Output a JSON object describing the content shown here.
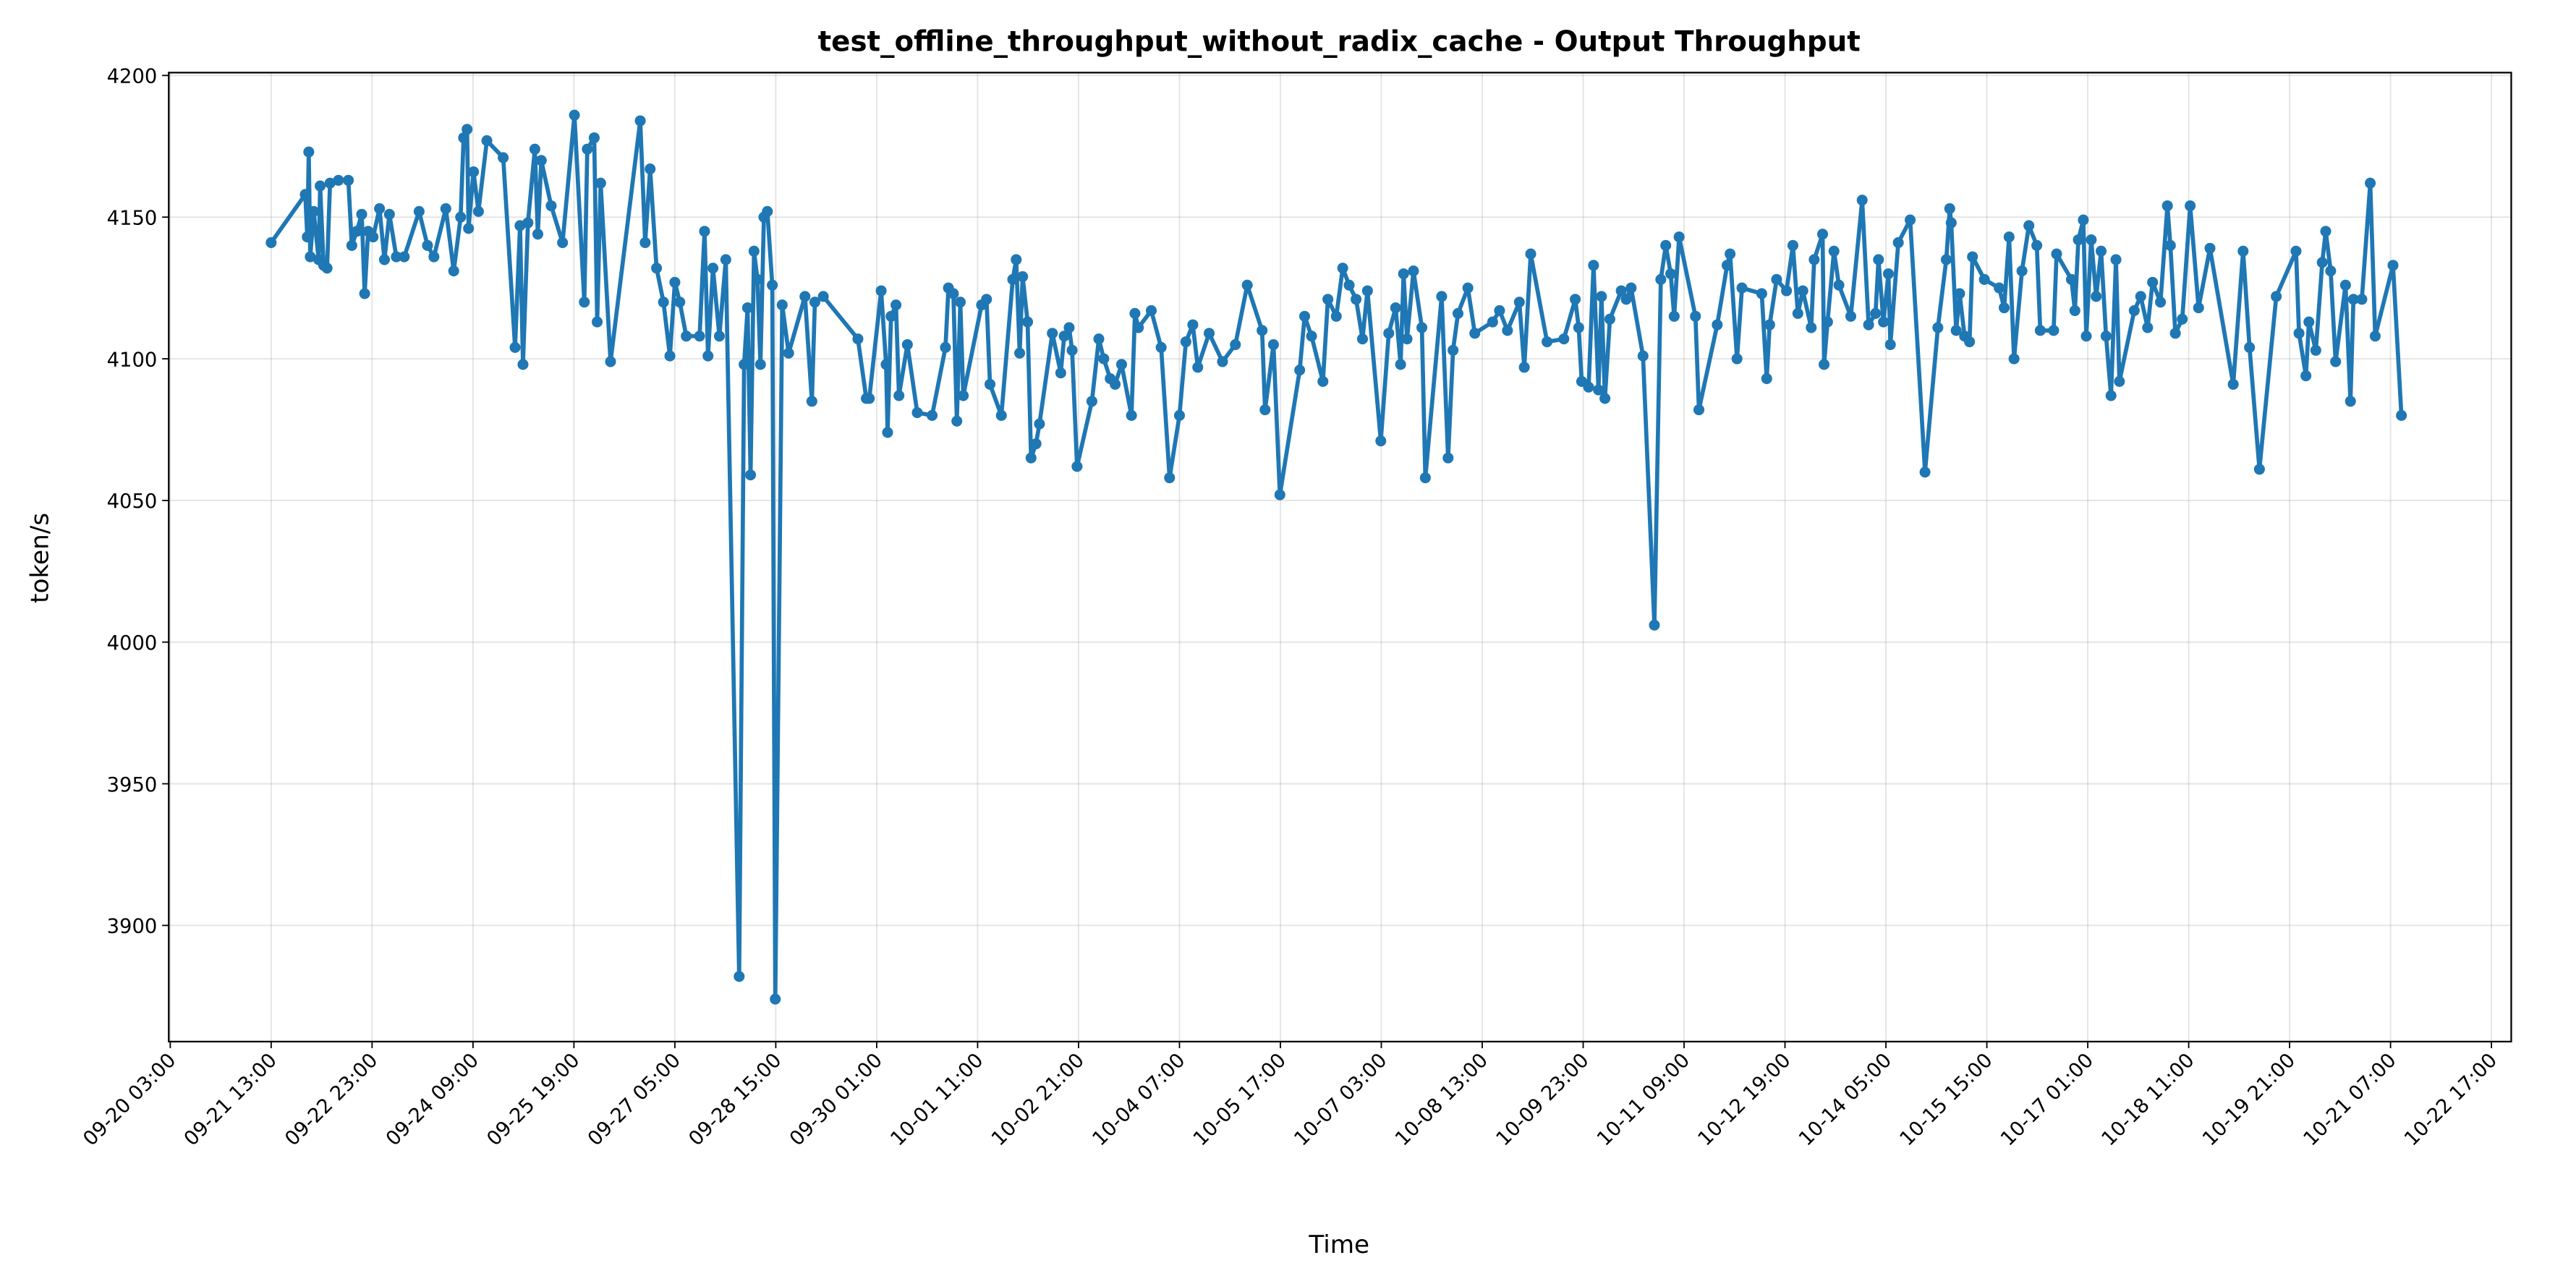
{
  "chart_data": {
    "type": "line",
    "title": "test_offline_throughput_without_radix_cache - Output Throughput",
    "xlabel": "Time",
    "ylabel": "token/s",
    "color": "#1f77b4",
    "grid": true,
    "xlim": [
      "09-20 02:30",
      "10-22 23:40"
    ],
    "xticks": [
      "09-20 03:00",
      "09-21 13:00",
      "09-22 23:00",
      "09-24 09:00",
      "09-25 19:00",
      "09-27 05:00",
      "09-28 15:00",
      "09-30 01:00",
      "10-01 11:00",
      "10-02 21:00",
      "10-04 07:00",
      "10-05 17:00",
      "10-07 03:00",
      "10-08 13:00",
      "10-09 23:00",
      "10-11 09:00",
      "10-12 19:00",
      "10-14 05:00",
      "10-15 15:00",
      "10-17 01:00",
      "10-18 11:00",
      "10-19 21:00",
      "10-21 07:00",
      "10-22 17:00"
    ],
    "ylim": [
      3859,
      4201
    ],
    "yticks": [
      3900,
      3950,
      4000,
      4050,
      4100,
      4150,
      4200
    ],
    "x": [
      "09-21 13:00",
      "09-22 00:30",
      "09-22 01:10",
      "09-22 01:40",
      "09-22 02:10",
      "09-22 03:20",
      "09-22 05:00",
      "09-22 05:30",
      "09-22 06:40",
      "09-22 07:50",
      "09-22 08:50",
      "09-22 11:40",
      "09-22 15:00",
      "09-22 16:10",
      "09-22 17:50",
      "09-22 19:30",
      "09-22 20:30",
      "09-22 21:40",
      "09-22 23:20",
      "09-23 01:30",
      "09-23 03:10",
      "09-23 04:50",
      "09-23 07:10",
      "09-23 09:50",
      "09-23 14:50",
      "09-23 17:40",
      "09-23 19:50",
      "09-23 23:50",
      "09-24 02:30",
      "09-24 04:50",
      "09-24 05:50",
      "09-24 07:00",
      "09-24 07:30",
      "09-24 09:10",
      "09-24 10:50",
      "09-24 13:40",
      "09-24 19:10",
      "09-24 23:10",
      "09-25 00:50",
      "09-25 01:50",
      "09-25 03:30",
      "09-25 05:50",
      "09-25 06:50",
      "09-25 08:00",
      "09-25 11:20",
      "09-25 15:10",
      "09-25 19:10",
      "09-25 22:30",
      "09-25 23:30",
      "09-26 01:50",
      "09-26 02:50",
      "09-26 04:00",
      "09-26 07:20",
      "09-26 17:20",
      "09-26 19:00",
      "09-26 20:40",
      "09-26 22:50",
      "09-27 01:10",
      "09-27 03:20",
      "09-27 05:00",
      "09-27 06:40",
      "09-27 08:50",
      "09-27 13:20",
      "09-27 15:00",
      "09-27 16:10",
      "09-27 17:50",
      "09-27 20:00",
      "09-27 22:10",
      "09-28 02:40",
      "09-28 04:20",
      "09-28 05:30",
      "09-28 06:30",
      "09-28 07:40",
      "09-28 08:50",
      "09-28 09:50",
      "09-28 11:00",
      "09-28 12:10",
      "09-28 13:50",
      "09-28 14:50",
      "09-28 17:10",
      "09-28 19:20",
      "09-29 00:50",
      "09-29 03:10",
      "09-29 04:10",
      "09-29 07:00",
      "09-29 18:40",
      "09-29 21:30",
      "09-29 22:30",
      "09-30 02:30",
      "09-30 04:10",
      "09-30 04:40",
      "09-30 05:50",
      "09-30 07:30",
      "09-30 08:30",
      "09-30 11:20",
      "09-30 14:40",
      "09-30 19:40",
      "10-01 00:10",
      "10-01 01:10",
      "10-01 02:50",
      "10-01 04:00",
      "10-01 05:10",
      "10-01 06:10",
      "10-01 12:20",
      "10-01 14:00",
      "10-01 15:10",
      "10-01 19:00",
      "10-01 22:50",
      "10-02 00:00",
      "10-02 01:10",
      "10-02 02:10",
      "10-02 03:50",
      "10-02 05:00",
      "10-02 06:40",
      "10-02 07:50",
      "10-02 12:10",
      "10-02 15:00",
      "10-02 16:10",
      "10-02 17:50",
      "10-02 18:50",
      "10-02 20:30",
      "10-03 01:30",
      "10-03 03:50",
      "10-03 05:30",
      "10-03 07:40",
      "10-03 09:20",
      "10-03 11:30",
      "10-03 14:50",
      "10-03 16:00",
      "10-03 17:10",
      "10-03 21:30",
      "10-04 00:50",
      "10-04 03:40",
      "10-04 07:00",
      "10-04 09:10",
      "10-04 11:30",
      "10-04 13:10",
      "10-04 17:00",
      "10-04 21:30",
      "10-05 01:50",
      "10-05 05:50",
      "10-05 10:50",
      "10-05 11:50",
      "10-05 14:40",
      "10-05 16:50",
      "10-05 23:30",
      "10-06 01:10",
      "10-06 03:30",
      "10-06 07:20",
      "10-06 09:00",
      "10-06 11:50",
      "10-06 14:00",
      "10-06 16:10",
      "10-06 18:30",
      "10-06 20:40",
      "10-06 22:20",
      "10-07 02:50",
      "10-07 05:30",
      "10-07 07:50",
      "10-07 09:30",
      "10-07 10:30",
      "10-07 11:40",
      "10-07 13:50",
      "10-07 16:40",
      "10-07 17:50",
      "10-07 23:20",
      "10-08 01:30",
      "10-08 03:10",
      "10-08 04:50",
      "10-08 08:10",
      "10-08 10:30",
      "10-08 16:30",
      "10-08 18:50",
      "10-08 21:30",
      "10-09 01:30",
      "10-09 03:10",
      "10-09 05:20",
      "10-09 10:50",
      "10-09 16:30",
      "10-09 20:20",
      "10-09 21:30",
      "10-09 22:30",
      "10-10 00:50",
      "10-10 02:30",
      "10-10 04:10",
      "10-10 05:10",
      "10-10 06:20",
      "10-10 08:00",
      "10-10 11:50",
      "10-10 13:30",
      "10-10 15:10",
      "10-10 19:10",
      "10-10 23:00",
      "10-11 01:10",
      "10-11 02:50",
      "10-11 04:30",
      "10-11 05:40",
      "10-11 07:20",
      "10-11 12:50",
      "10-11 14:00",
      "10-11 20:10",
      "10-11 23:30",
      "10-12 00:30",
      "10-12 02:50",
      "10-12 04:30",
      "10-12 11:10",
      "10-12 12:50",
      "10-12 13:50",
      "10-12 16:10",
      "10-12 19:30",
      "10-12 21:40",
      "10-12 23:20",
      "10-13 01:00",
      "10-13 03:50",
      "10-13 04:50",
      "10-13 07:40",
      "10-13 08:10",
      "10-13 09:20",
      "10-13 11:30",
      "10-13 13:10",
      "10-13 17:10",
      "10-13 21:00",
      "10-13 23:10",
      "10-14 01:30",
      "10-14 02:30",
      "10-14 04:10",
      "10-14 05:50",
      "10-14 06:30",
      "10-14 09:10",
      "10-14 13:10",
      "10-14 18:10",
      "10-14 22:30",
      "10-15 01:20",
      "10-15 02:30",
      "10-15 03:00",
      "10-15 04:40",
      "10-15 05:50",
      "10-15 07:30",
      "10-15 09:10",
      "10-15 10:10",
      "10-15 14:10",
      "10-15 19:10",
      "10-15 20:50",
      "10-15 22:30",
      "10-16 00:10",
      "10-16 02:50",
      "10-16 05:10",
      "10-16 07:50",
      "10-16 09:00",
      "10-16 13:30",
      "10-16 14:30",
      "10-16 19:30",
      "10-16 20:40",
      "10-16 21:50",
      "10-16 23:30",
      "10-17 00:30",
      "10-17 02:10",
      "10-17 03:50",
      "10-17 05:30",
      "10-17 07:10",
      "10-17 08:50",
      "10-17 10:30",
      "10-17 11:40",
      "10-17 16:40",
      "10-17 18:50",
      "10-17 21:10",
      "10-17 22:50",
      "10-18 01:30",
      "10-18 03:50",
      "10-18 04:50",
      "10-18 06:30",
      "10-18 08:50",
      "10-18 11:30",
      "10-18 14:20",
      "10-18 18:10",
      "10-19 02:00",
      "10-19 05:20",
      "10-19 07:30",
      "10-19 10:50",
      "10-19 16:30",
      "10-19 23:10",
      "10-20 00:10",
      "10-20 02:30",
      "10-20 03:30",
      "10-20 05:50",
      "10-20 08:00",
      "10-20 09:10",
      "10-20 10:50",
      "10-20 12:30",
      "10-20 15:50",
      "10-20 17:30",
      "10-20 18:30",
      "10-20 21:20",
      "10-21 00:10",
      "10-21 01:50",
      "10-21 07:50",
      "10-21 10:40"
    ],
    "values": [
      4141,
      4158,
      4143,
      4173,
      4136,
      4152,
      4135,
      4161,
      4133,
      4132,
      4162,
      4163,
      4163,
      4140,
      4145,
      4151,
      4123,
      4145,
      4143,
      4153,
      4135,
      4151,
      4136,
      4136,
      4152,
      4140,
      4136,
      4153,
      4131,
      4150,
      4178,
      4181,
      4146,
      4166,
      4152,
      4177,
      4171,
      4104,
      4147,
      4098,
      4148,
      4174,
      4144,
      4170,
      4154,
      4141,
      4186,
      4120,
      4174,
      4178,
      4113,
      4162,
      4099,
      4184,
      4141,
      4167,
      4132,
      4120,
      4101,
      4127,
      4120,
      4108,
      4108,
      4145,
      4101,
      4132,
      4108,
      4135,
      3882,
      4098,
      4118,
      4059,
      4138,
      4128,
      4098,
      4150,
      4152,
      4126,
      3874,
      4119,
      4102,
      4122,
      4085,
      4120,
      4122,
      4107,
      4086,
      4086,
      4124,
      4098,
      4074,
      4115,
      4119,
      4087,
      4105,
      4081,
      4080,
      4104,
      4125,
      4123,
      4078,
      4120,
      4087,
      4119,
      4121,
      4091,
      4080,
      4128,
      4135,
      4102,
      4129,
      4113,
      4065,
      4070,
      4077,
      4109,
      4095,
      4108,
      4111,
      4103,
      4062,
      4085,
      4107,
      4100,
      4093,
      4091,
      4098,
      4080,
      4116,
      4111,
      4117,
      4104,
      4058,
      4080,
      4106,
      4112,
      4097,
      4109,
      4099,
      4105,
      4126,
      4110,
      4082,
      4105,
      4052,
      4096,
      4115,
      4108,
      4092,
      4121,
      4115,
      4132,
      4126,
      4121,
      4107,
      4124,
      4071,
      4109,
      4118,
      4098,
      4130,
      4107,
      4131,
      4111,
      4058,
      4122,
      4065,
      4103,
      4116,
      4125,
      4109,
      4113,
      4117,
      4110,
      4120,
      4097,
      4137,
      4106,
      4107,
      4121,
      4111,
      4092,
      4090,
      4133,
      4089,
      4122,
      4086,
      4114,
      4124,
      4121,
      4125,
      4101,
      4006,
      4128,
      4140,
      4130,
      4115,
      4143,
      4115,
      4082,
      4112,
      4133,
      4137,
      4100,
      4125,
      4123,
      4093,
      4112,
      4128,
      4124,
      4140,
      4116,
      4124,
      4111,
      4135,
      4144,
      4098,
      4113,
      4138,
      4126,
      4115,
      4156,
      4112,
      4116,
      4135,
      4113,
      4130,
      4105,
      4141,
      4149,
      4060,
      4111,
      4135,
      4153,
      4148,
      4110,
      4123,
      4108,
      4106,
      4136,
      4128,
      4125,
      4118,
      4143,
      4100,
      4131,
      4147,
      4140,
      4110,
      4110,
      4137,
      4128,
      4117,
      4142,
      4149,
      4108,
      4142,
      4122,
      4138,
      4108,
      4087,
      4135,
      4092,
      4117,
      4122,
      4111,
      4127,
      4120,
      4154,
      4140,
      4109,
      4114,
      4154,
      4118,
      4139,
      4091,
      4138,
      4104,
      4061,
      4122,
      4138,
      4109,
      4094,
      4113,
      4103,
      4134,
      4145,
      4131,
      4099,
      4126,
      4085,
      4121,
      4121,
      4162,
      4108,
      4133,
      4080
    ]
  }
}
